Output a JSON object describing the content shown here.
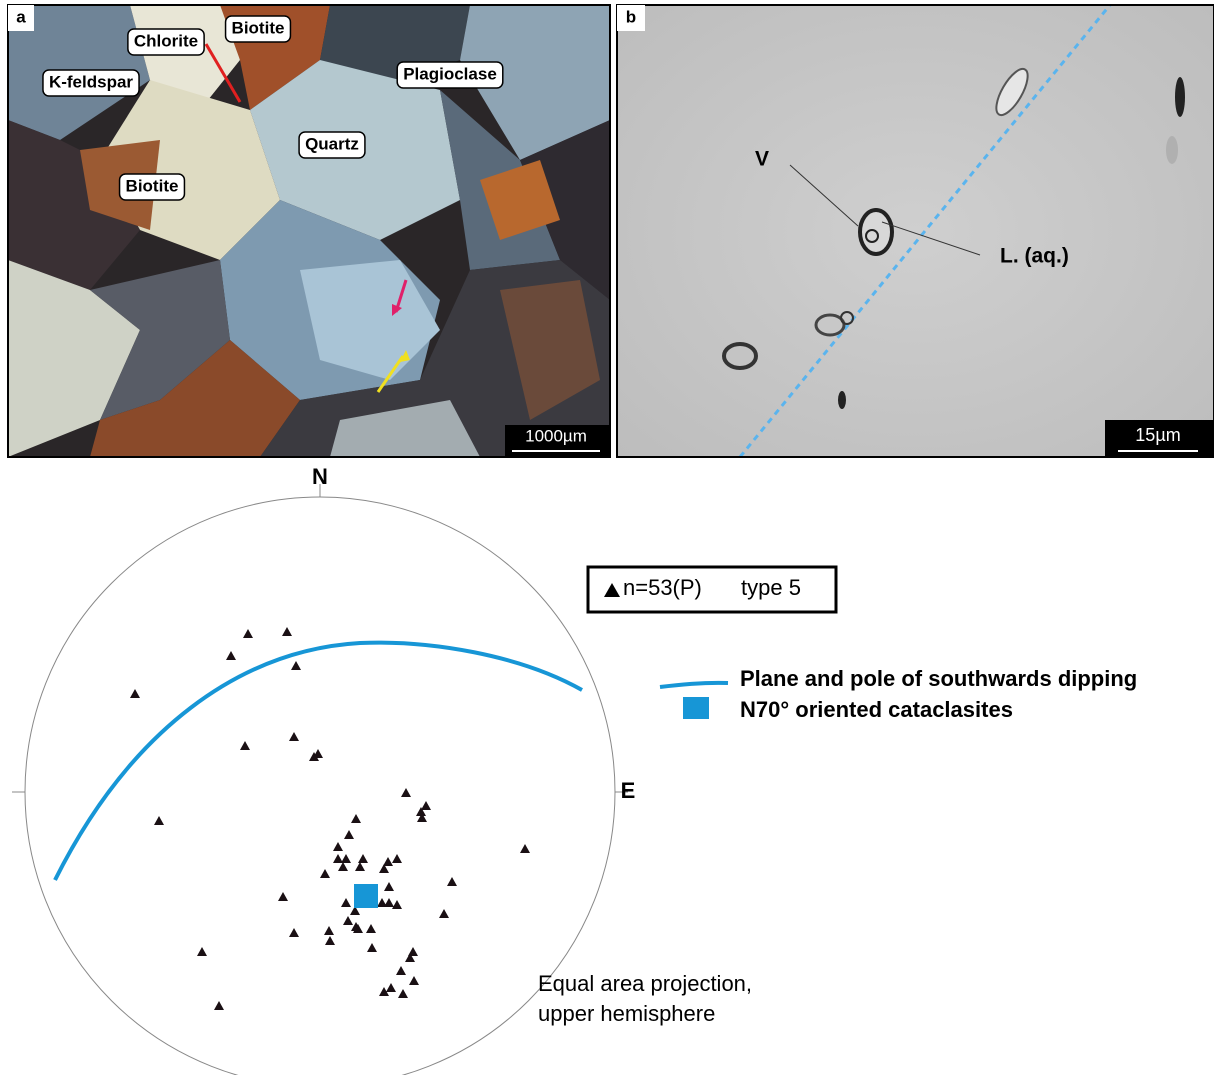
{
  "panel_a": {
    "label": "a",
    "minerals": [
      "Chlorite",
      "Biotite",
      "K-feldspar",
      "Plagioclase",
      "Quartz",
      "Biotite"
    ],
    "scale_bar": "1000µm"
  },
  "panel_b": {
    "label": "b",
    "annotations": [
      "V",
      "L. (aq.)"
    ],
    "scale_bar": "15µm"
  },
  "stereonet": {
    "north": "N",
    "east": "E",
    "legend": {
      "count": "n=53(P)",
      "type": "type 5",
      "plane_pole": [
        "Plane and pole of southwards dipping",
        "N70° oriented cataclasites"
      ]
    },
    "projection": [
      "Equal area projection,",
      "upper hemisphere"
    ]
  }
}
